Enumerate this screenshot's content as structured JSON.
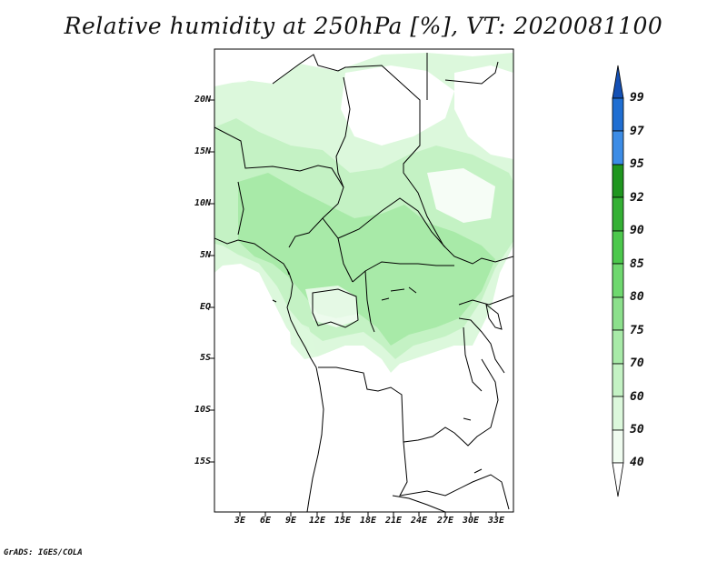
{
  "title": "Relative humidity at 250hPa [%], VT: 2020081100",
  "credit": "GrADS: IGES/COLA",
  "latitude_labels": [
    "20N",
    "15N",
    "10N",
    "5N",
    "EQ",
    "5S",
    "10S",
    "15S"
  ],
  "longitude_labels": [
    "3E",
    "6E",
    "9E",
    "12E",
    "15E",
    "18E",
    "21E",
    "24E",
    "27E",
    "30E",
    "33E"
  ],
  "colorbar": {
    "levels": [
      "40",
      "50",
      "60",
      "70",
      "75",
      "80",
      "85",
      "90",
      "92",
      "95",
      "97",
      "99"
    ],
    "colors": {
      "40_50": "#f0fcf0",
      "50_60": "#dcf8dc",
      "60_70": "#c4f2c4",
      "70_75": "#a8eaa8",
      "75_80": "#8ce08c",
      "80_85": "#6fd86f",
      "85_90": "#4cc84c",
      "90_92": "#34b034",
      "92_95": "#1f961f",
      "95_97": "#3c8ce6",
      "97_99": "#1f6ed2",
      "above_99": "#1450b4"
    }
  },
  "map": {
    "fill_colors": {
      "light": "#dcf8dc",
      "medium": "#c4f2c4",
      "strong": "#a8eaa8",
      "deep": "#8ce08c"
    }
  }
}
